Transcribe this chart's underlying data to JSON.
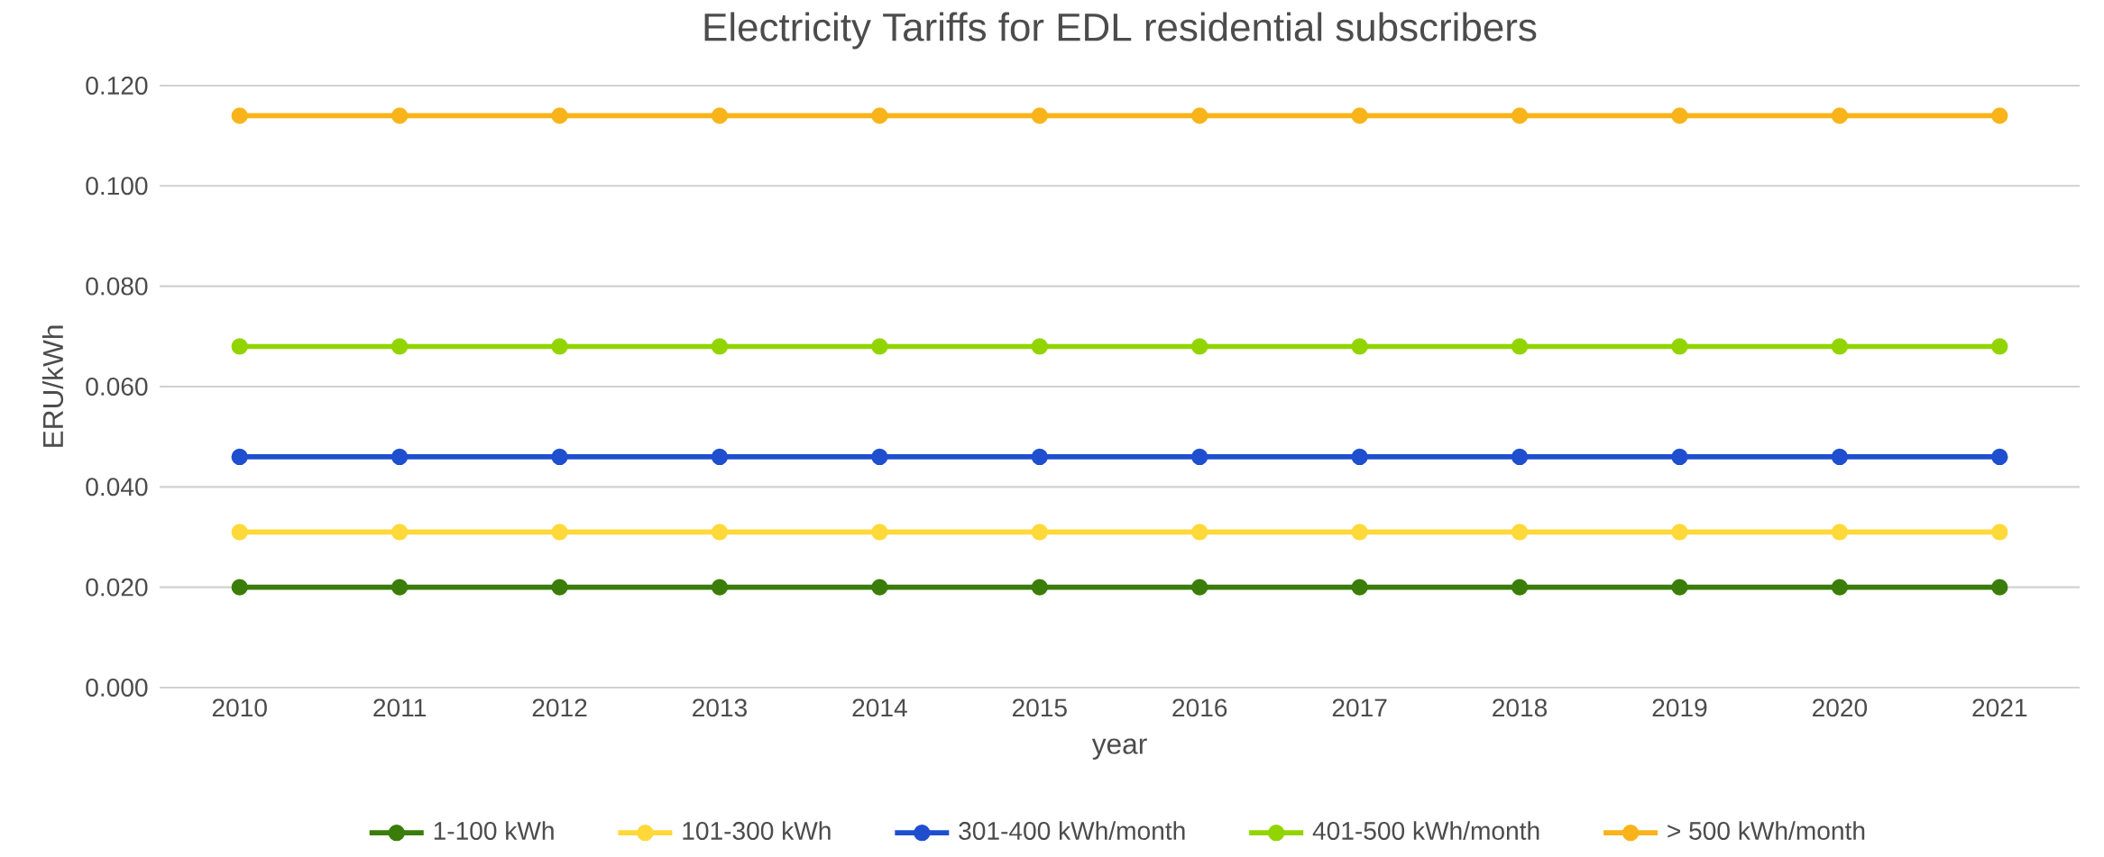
{
  "chart_data": {
    "type": "line",
    "title": "Electricity Tariffs for EDL residential subscribers",
    "xlabel": "year",
    "ylabel": "ERU/kWh",
    "categories": [
      "2010",
      "2011",
      "2012",
      "2013",
      "2014",
      "2015",
      "2016",
      "2017",
      "2018",
      "2019",
      "2020",
      "2021"
    ],
    "series": [
      {
        "name": "1-100 kWh",
        "color": "#3a7d0a",
        "values": [
          0.02,
          0.02,
          0.02,
          0.02,
          0.02,
          0.02,
          0.02,
          0.02,
          0.02,
          0.02,
          0.02,
          0.02
        ]
      },
      {
        "name": "101-300 kWh",
        "color": "#ffd83a",
        "values": [
          0.031,
          0.031,
          0.031,
          0.031,
          0.031,
          0.031,
          0.031,
          0.031,
          0.031,
          0.031,
          0.031,
          0.031
        ]
      },
      {
        "name": "301-400 kWh/month",
        "color": "#1f4fcf",
        "values": [
          0.046,
          0.046,
          0.046,
          0.046,
          0.046,
          0.046,
          0.046,
          0.046,
          0.046,
          0.046,
          0.046,
          0.046
        ]
      },
      {
        "name": "401-500 kWh/month",
        "color": "#92d400",
        "values": [
          0.068,
          0.068,
          0.068,
          0.068,
          0.068,
          0.068,
          0.068,
          0.068,
          0.068,
          0.068,
          0.068,
          0.068
        ]
      },
      {
        "name": "> 500 kWh/month",
        "color": "#f9b31b",
        "values": [
          0.114,
          0.114,
          0.114,
          0.114,
          0.114,
          0.114,
          0.114,
          0.114,
          0.114,
          0.114,
          0.114,
          0.114
        ]
      }
    ],
    "ylim": [
      0,
      0.12
    ],
    "yticks": [
      {
        "value": 0,
        "label": "0.000"
      },
      {
        "value": 0.02,
        "label": "0.020"
      },
      {
        "value": 0.04,
        "label": "0.040"
      },
      {
        "value": 0.06,
        "label": "0.060"
      },
      {
        "value": 0.08,
        "label": "0.080"
      },
      {
        "value": 0.1,
        "label": "0.100"
      },
      {
        "value": 0.12,
        "label": "0.120"
      }
    ],
    "grid": "y",
    "legend": "bottom",
    "marker": "circle",
    "line_style": "solid"
  }
}
